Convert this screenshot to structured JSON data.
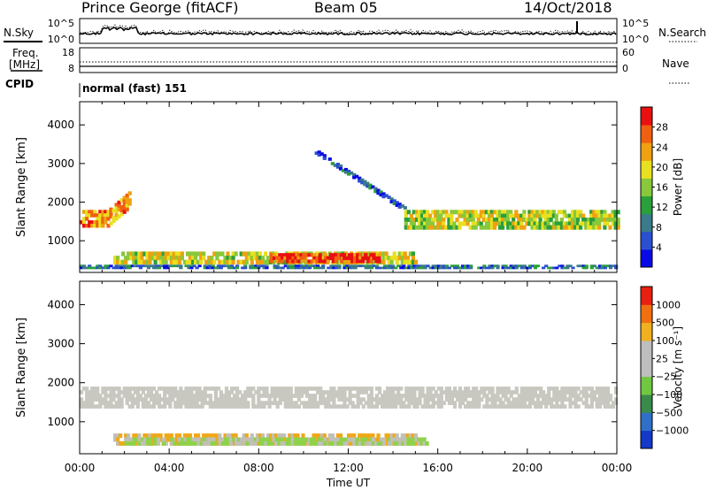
{
  "header": {
    "station": "Prince George (fitACF)",
    "beam": "Beam 05",
    "date": "14/Oct/2018"
  },
  "status_panels": {
    "nsky_label": "N.Sky",
    "nsearch_label": "N.Search",
    "freq_label_1": "Freq.",
    "freq_label_2": "[MHz]",
    "nave_label": "Nave",
    "cpid_label": "CPID",
    "cpid_value": "normal (fast) 151",
    "noise_ticks": [
      "10^5",
      "10^0"
    ],
    "freq_ticks": [
      "18",
      "8"
    ],
    "nave_ticks": [
      "60",
      "0"
    ]
  },
  "colors": {
    "power_scale": [
      "#0a0ae6",
      "#2a4fd0",
      "#3a7a8a",
      "#2aa03a",
      "#88c83a",
      "#e8e020",
      "#f0a010",
      "#f06010",
      "#e81010"
    ],
    "velocity_scale": [
      "#1438c8",
      "#2f6fc8",
      "#3a8a4a",
      "#70c840",
      "#bebebe",
      "#bebebe",
      "#f0b020",
      "#f07010",
      "#e82010"
    ]
  },
  "chart_data": [
    {
      "type": "heatmap",
      "title": "Power",
      "xlabel": "",
      "ylabel": "Slant Range [km]",
      "x_ticks": [
        "00:00",
        "04:00",
        "08:00",
        "12:00",
        "16:00",
        "20:00",
        "00:00"
      ],
      "y_ticks": [
        "1000",
        "2000",
        "3000",
        "4000"
      ],
      "xlim_hours": [
        0,
        24
      ],
      "ylim_km": [
        180,
        4600
      ],
      "colorbar": {
        "label": "Power [dB]",
        "ticks": [
          "4",
          "8",
          "12",
          "16",
          "20",
          "24",
          "28"
        ],
        "range": [
          0,
          32
        ]
      },
      "features": [
        {
          "name": "near-range band",
          "t_start": 0.0,
          "t_end": 24.0,
          "range_km": [
            280,
            380
          ],
          "level": 0.25
        },
        {
          "name": "E/F band",
          "t_start": 1.5,
          "t_end": 15.0,
          "range_km": [
            400,
            720
          ],
          "level": 0.6
        },
        {
          "name": "strong echo",
          "t_start": 8.5,
          "t_end": 13.3,
          "range_km": [
            430,
            680
          ],
          "level": 0.92
        },
        {
          "name": "F-region band",
          "t_start": 0.0,
          "t_end": 2.2,
          "range_km": [
            1350,
            1800
          ],
          "level": 0.75
        },
        {
          "name": "F-region band",
          "t_start": 14.5,
          "t_end": 24.0,
          "range_km": [
            1300,
            1800
          ],
          "level": 0.55
        },
        {
          "name": "scatter arc",
          "t_start": 10.5,
          "t_end": 14.5,
          "range_km": [
            1700,
            3400
          ],
          "level": 0.22
        }
      ]
    },
    {
      "type": "heatmap",
      "title": "Velocity",
      "xlabel": "Time UT",
      "ylabel": "Slant Range [km]",
      "x_ticks": [
        "00:00",
        "04:00",
        "08:00",
        "12:00",
        "16:00",
        "20:00",
        "00:00"
      ],
      "y_ticks": [
        "1000",
        "2000",
        "3000",
        "4000"
      ],
      "xlim_hours": [
        0,
        24
      ],
      "ylim_km": [
        180,
        4600
      ],
      "colorbar": {
        "label": "Velocity [m s⁻¹]",
        "ticks": [
          "1000",
          "500",
          "100",
          "25",
          "−25",
          "−100",
          "−500",
          "−1000"
        ]
      },
      "features": [
        {
          "name": "ground scatter",
          "t_start": 0.0,
          "t_end": 24.0,
          "range_km": [
            1350,
            1900
          ],
          "level": 0.5
        },
        {
          "name": "near-range",
          "t_start": 1.5,
          "t_end": 15.0,
          "range_km": [
            400,
            700
          ],
          "level": 0.7
        },
        {
          "name": "near-range green",
          "t_start": 2.0,
          "t_end": 15.5,
          "range_km": [
            400,
            600
          ],
          "level": 0.3
        }
      ]
    }
  ]
}
